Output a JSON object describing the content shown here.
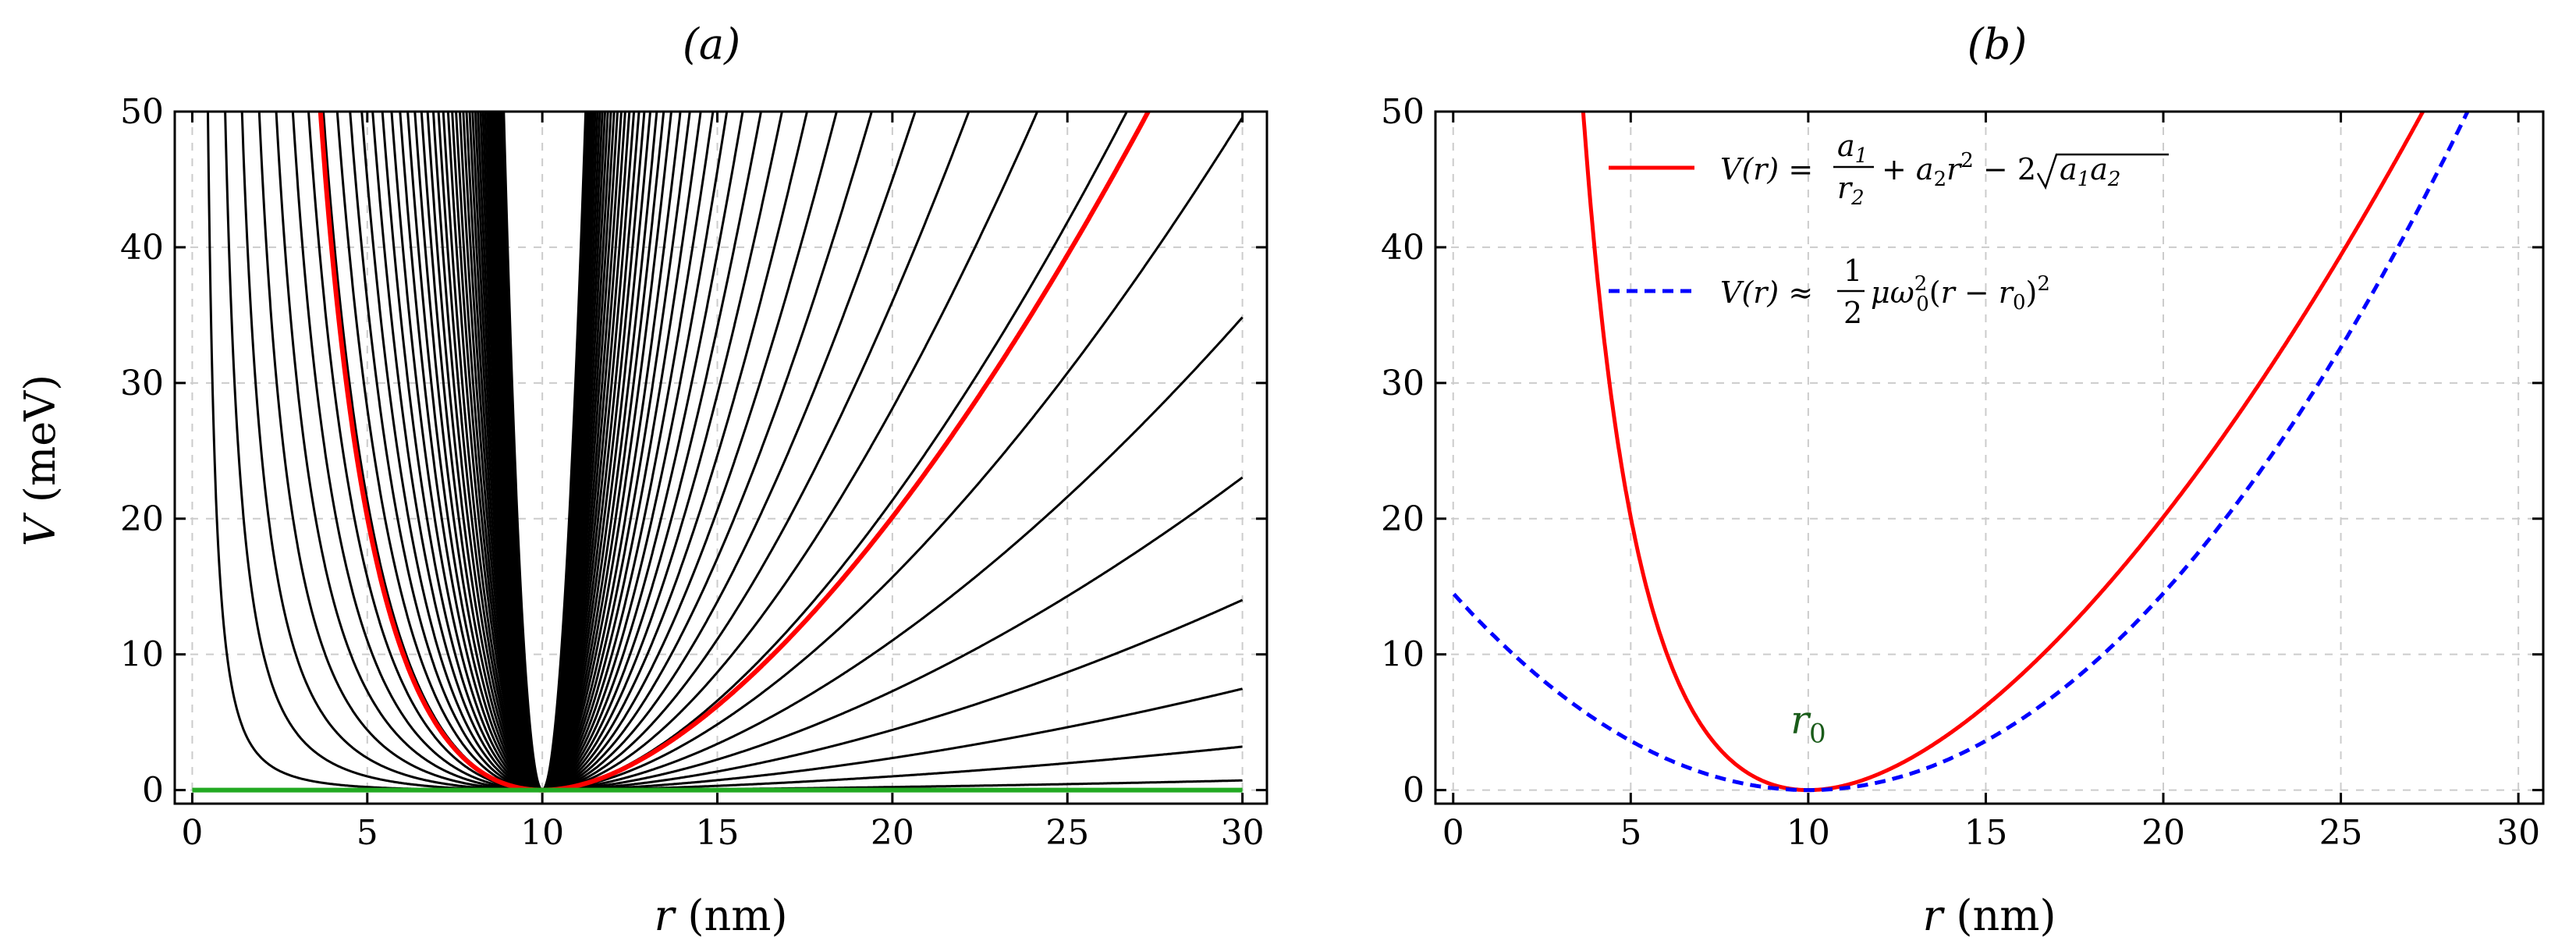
{
  "chart_data": [
    {
      "panel": "a",
      "type": "line",
      "title": "(a)",
      "xlabel": "r (nm)",
      "ylabel": "V (meV)",
      "xlim": [
        -0.5,
        30.7
      ],
      "ylim": [
        -1,
        50
      ],
      "xticks": [
        "0",
        "5",
        "10",
        "15",
        "20",
        "25",
        "30"
      ],
      "yticks": [
        "0",
        "10",
        "20",
        "30",
        "40",
        "50"
      ],
      "grid": true,
      "r0": 10,
      "family_formula": "V(r) = a1/r^2 + a2 r^2 - 2 sqrt(a1 a2), r0 = 10 nm",
      "family_a2_meV_per_nm2": [
        0.001,
        0.0045,
        0.0105,
        0.0197,
        0.0324,
        0.049,
        0.0697,
        0.0949,
        0.125,
        0.16,
        0.2,
        0.246,
        0.297,
        0.355,
        0.42,
        0.491,
        0.57,
        0.657,
        0.752,
        0.857,
        0.97,
        1.09,
        1.23,
        1.37,
        1.52,
        1.69,
        1.87,
        2.06,
        2.27,
        2.49,
        2.73,
        2.98,
        3.26,
        3.55,
        3.86,
        4.2,
        4.56,
        4.94,
        5.35,
        5.8,
        6.27,
        6.77,
        7.31,
        7.89,
        8.5,
        9.15
      ],
      "family_color": "#000000",
      "highlight": {
        "name": "highlighted curve",
        "color": "#ff0000",
        "a2_meV_per_nm2": 0.0894
      },
      "baseline": {
        "name": "zero line",
        "color": "#22aa22",
        "value": 0
      }
    },
    {
      "panel": "b",
      "type": "line",
      "title": "(b)",
      "xlabel": "r (nm)",
      "xlim": [
        -0.5,
        30.7
      ],
      "ylim": [
        -1,
        50
      ],
      "xticks": [
        "0",
        "5",
        "10",
        "15",
        "20",
        "25",
        "30"
      ],
      "yticks": [
        "0",
        "10",
        "20",
        "30",
        "40",
        "50"
      ],
      "grid": true,
      "series": [
        {
          "name": "V(r) = a1/r2 + a2 r^2 - 2 sqrt(a1 a2)",
          "color": "#ff0000",
          "style": "solid",
          "a2_meV_per_nm2": 0.0894,
          "r0": 10
        },
        {
          "name": "V(r) ≈ (1/2) μ ω0^2 (r - r0)^2",
          "color": "#0000ff",
          "style": "dashed",
          "k_meV_per_nm2": 0.29,
          "r0": 10
        }
      ],
      "annotation": {
        "text": "r",
        "sub": "0",
        "x": 10,
        "y": 4.2,
        "color": "#1a5c1a"
      },
      "legend_position": "top-left"
    }
  ]
}
